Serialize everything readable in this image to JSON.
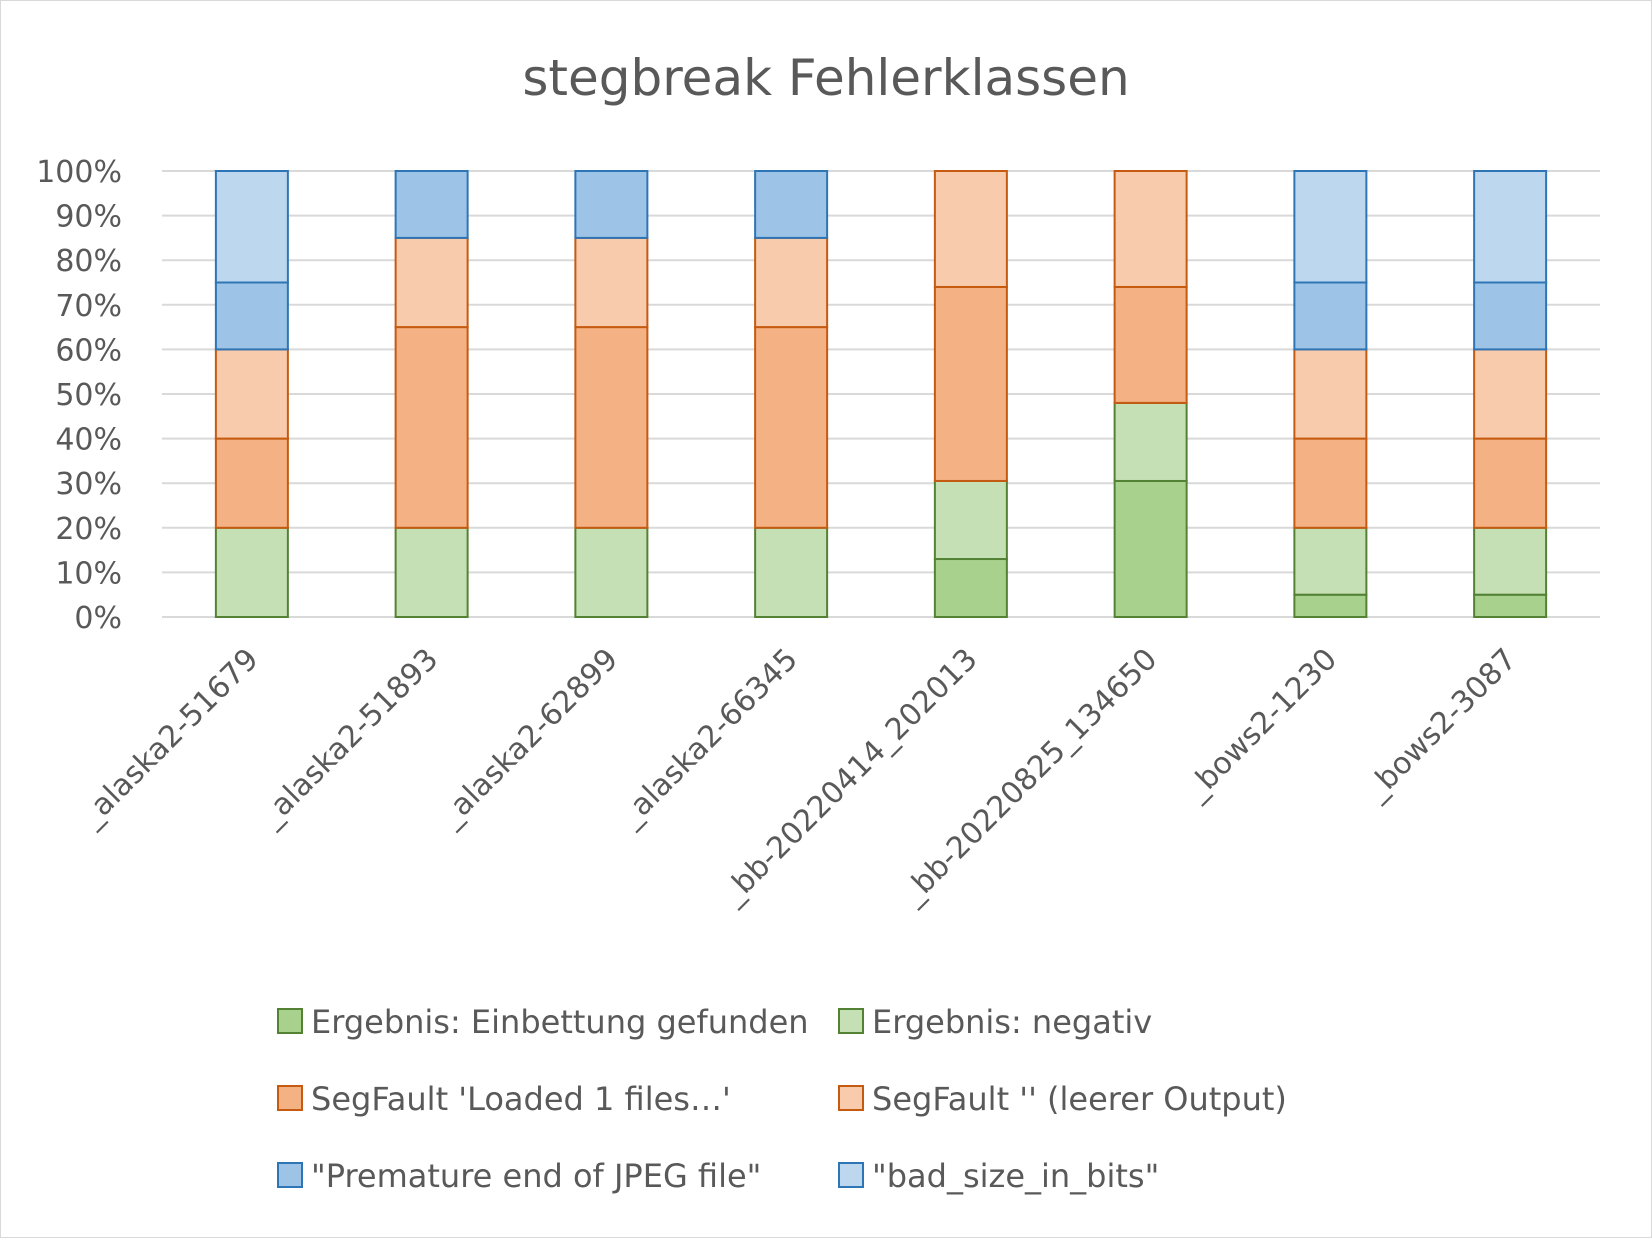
{
  "chart_data": {
    "type": "bar",
    "stacked": "percent",
    "title": "stegbreak Fehlerklassen",
    "categories": [
      "_alaska2-51679",
      "_alaska2-51893",
      "_alaska2-62899",
      "_alaska2-66345",
      "_bb-20220414_202013",
      "_bb-20220825_134650",
      "_bows2-1230",
      "_bows2-3087"
    ],
    "y_ticks": [
      "0%",
      "10%",
      "20%",
      "30%",
      "40%",
      "50%",
      "60%",
      "70%",
      "80%",
      "90%",
      "100%"
    ],
    "ylim": [
      0,
      100
    ],
    "grid": true,
    "legend_position": "bottom",
    "series": [
      {
        "name": "Ergebnis: Einbettung gefunden",
        "color": "#a9d18e",
        "stroke": "#548235",
        "values": [
          0,
          0,
          0,
          0,
          13,
          30.5,
          5,
          5
        ]
      },
      {
        "name": "Ergebnis: negativ",
        "color": "#c5e0b4",
        "stroke": "#548235",
        "values": [
          20,
          20,
          20,
          20,
          17.5,
          17.5,
          15,
          15
        ]
      },
      {
        "name": "SegFault 'Loaded 1 files…'",
        "color": "#f4b183",
        "stroke": "#c55a11",
        "values": [
          20,
          45,
          45,
          45,
          43.5,
          26,
          20,
          20
        ]
      },
      {
        "name": "SegFault '' (leerer Output)",
        "color": "#f8cbad",
        "stroke": "#c55a11",
        "values": [
          20,
          20,
          20,
          20,
          26,
          26,
          20,
          20
        ]
      },
      {
        "name": "\"Premature end of JPEG file\"",
        "color": "#9dc3e6",
        "stroke": "#2e75b6",
        "values": [
          15,
          15,
          15,
          15,
          0,
          0,
          15,
          15
        ]
      },
      {
        "name": "\"bad_size_in_bits\"",
        "color": "#bdd7ee",
        "stroke": "#2e75b6",
        "values": [
          25,
          0,
          0,
          0,
          0,
          0,
          25,
          25
        ]
      }
    ]
  }
}
